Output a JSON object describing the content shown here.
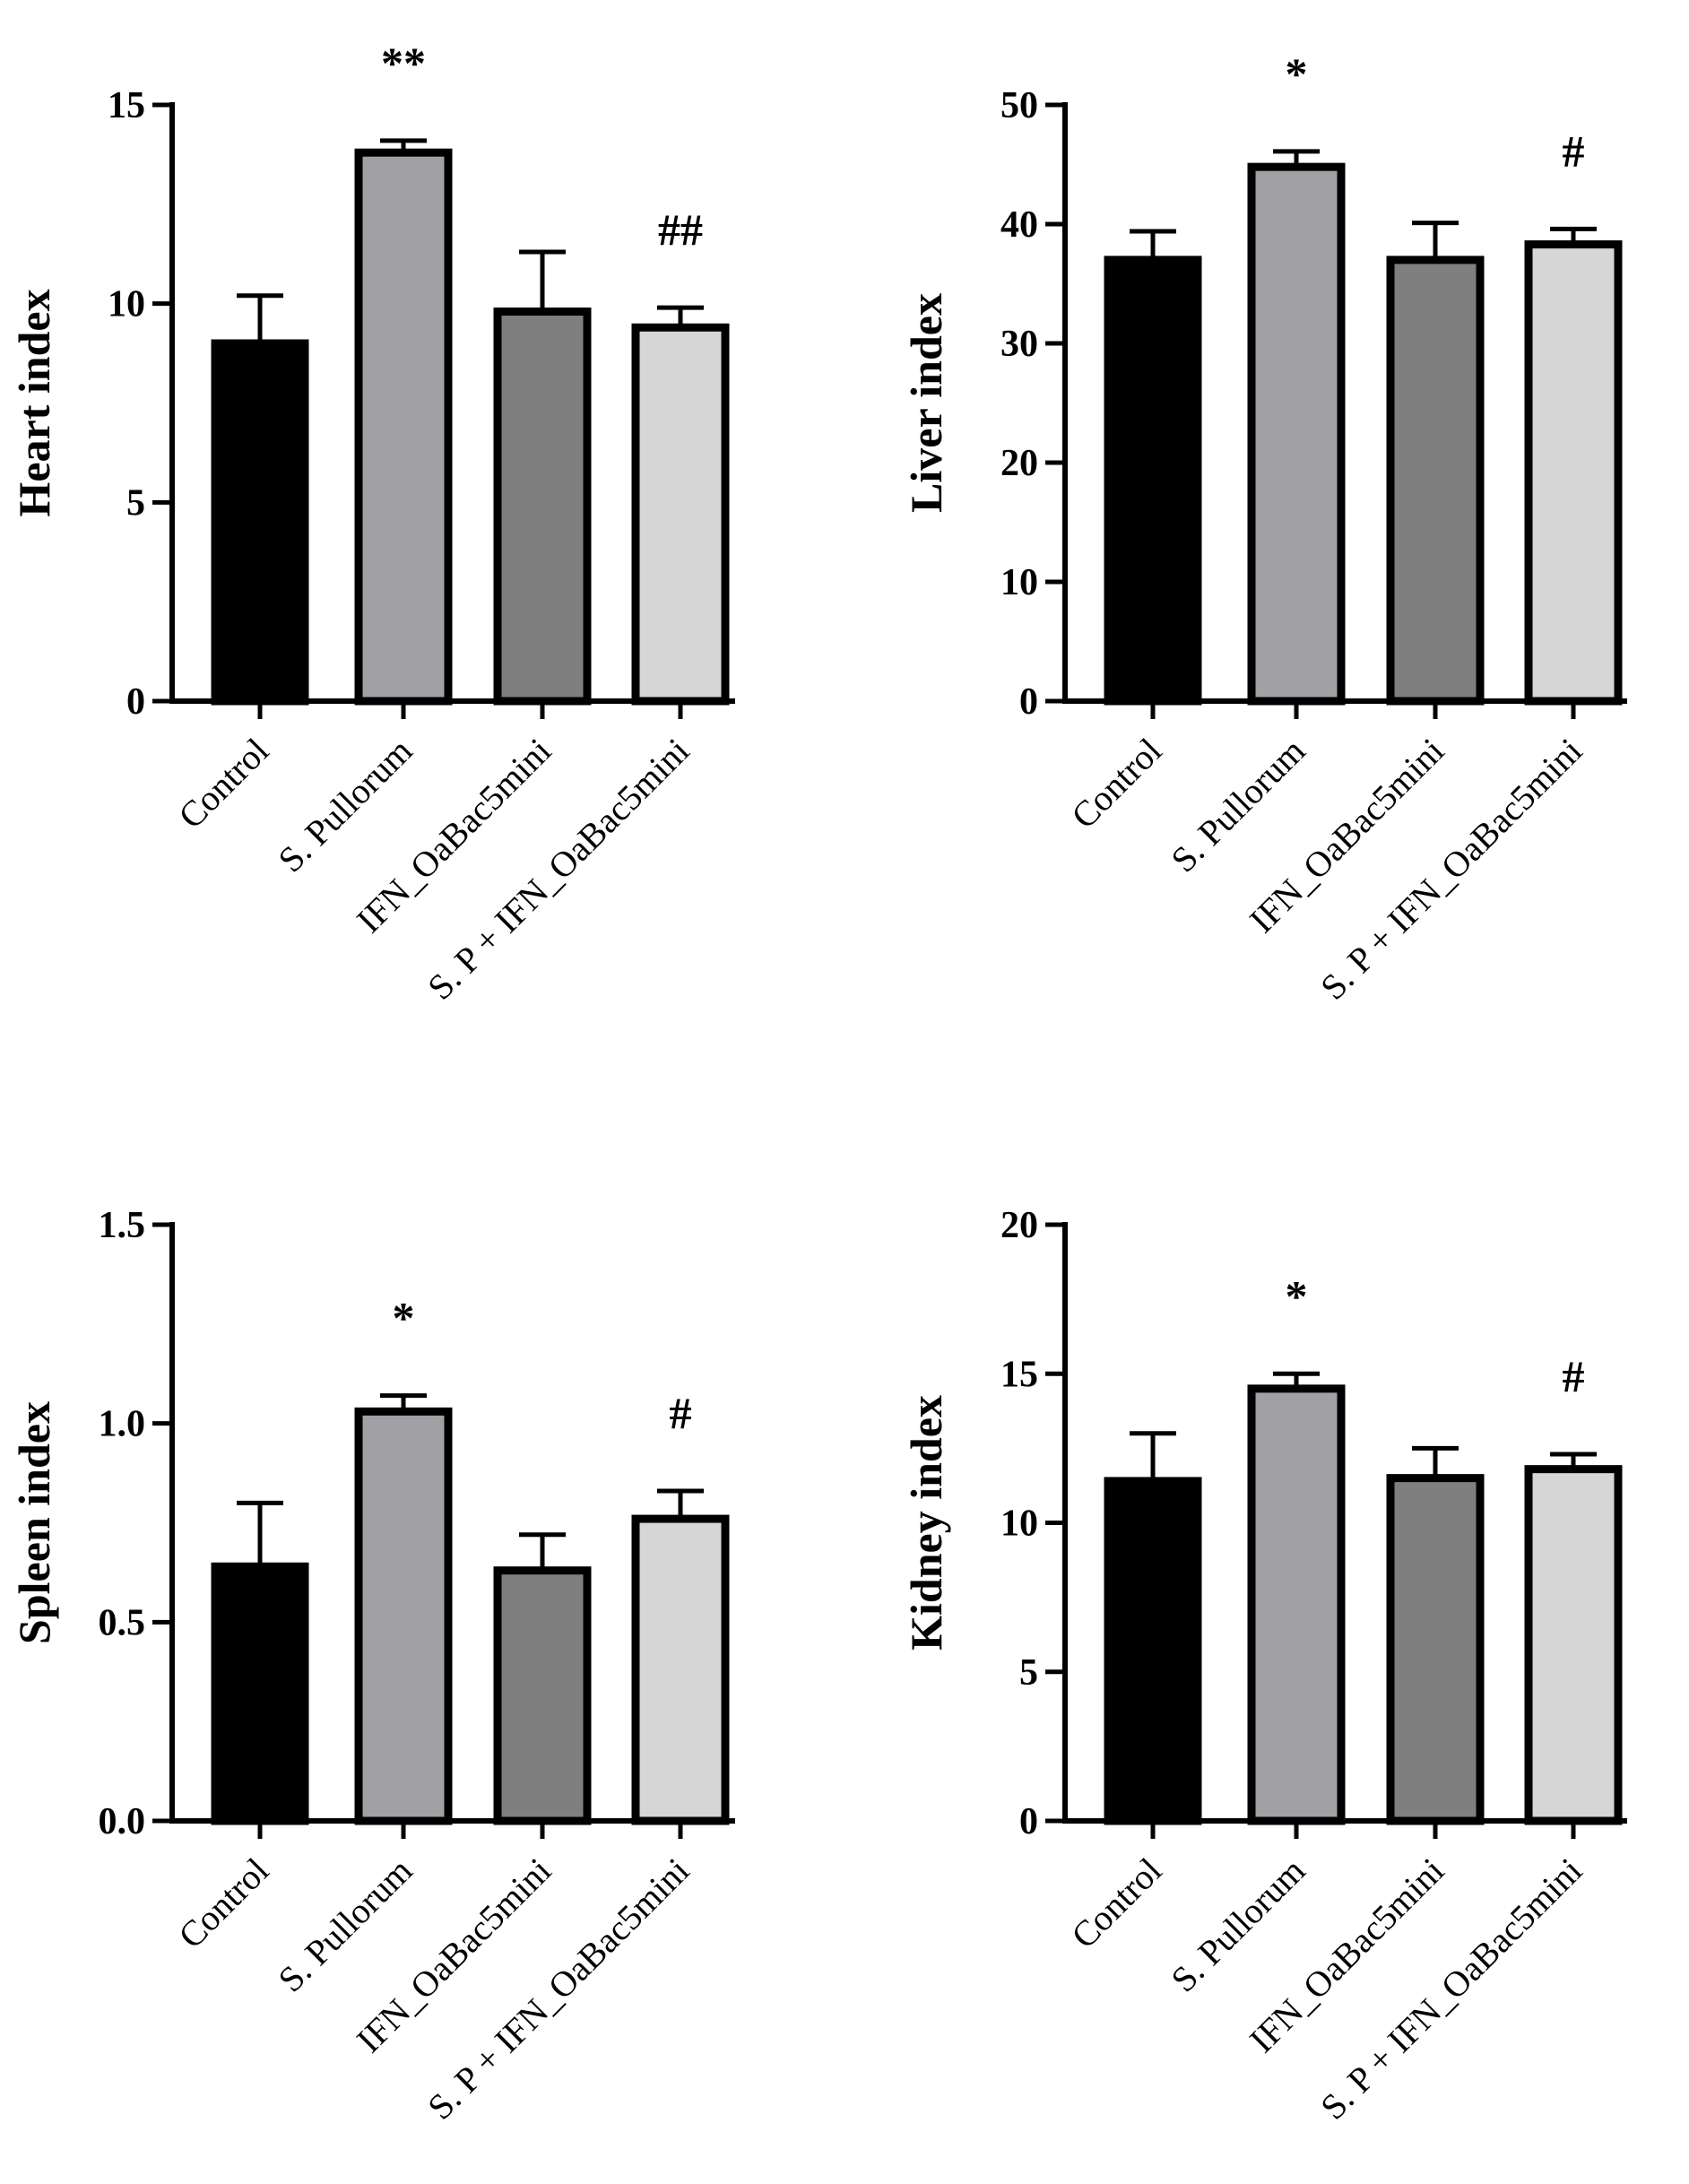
{
  "chart_data": [
    {
      "type": "bar",
      "title": "",
      "ylabel": "Heart index",
      "xlabel": "",
      "ylim": [
        0,
        15
      ],
      "yticks": [
        0,
        5,
        10,
        15
      ],
      "categories": [
        "Control",
        "S. Pullorum",
        "IFN_OaBac5mini",
        "S. P + IFN_OaBac5mini"
      ],
      "values": [
        9.0,
        13.8,
        9.8,
        9.4
      ],
      "errors": [
        1.2,
        0.3,
        1.5,
        0.5
      ],
      "annotations": [
        "",
        "**",
        "",
        "##"
      ],
      "colors": [
        "#000000",
        "#a0a0a5",
        "#7f7f7f",
        "#d6d6d6"
      ]
    },
    {
      "type": "bar",
      "title": "",
      "ylabel": "Liver index",
      "xlabel": "",
      "ylim": [
        0,
        50
      ],
      "yticks": [
        0,
        10,
        20,
        30,
        40,
        50
      ],
      "categories": [
        "Control",
        "S. Pullorum",
        "IFN_OaBac5mini",
        "S. P + IFN_OaBac5mini"
      ],
      "values": [
        37.0,
        44.8,
        37.0,
        38.3
      ],
      "errors": [
        2.4,
        1.3,
        3.1,
        1.3
      ],
      "annotations": [
        "",
        "*",
        "",
        "#"
      ],
      "colors": [
        "#000000",
        "#a0a0a5",
        "#7f7f7f",
        "#d6d6d6"
      ]
    },
    {
      "type": "bar",
      "title": "",
      "ylabel": "Spleen index",
      "xlabel": "",
      "ylim": [
        0,
        1.5
      ],
      "yticks": [
        "0.0",
        "0.5",
        "1.0",
        "1.5"
      ],
      "categories": [
        "Control",
        "S. Pullorum",
        "IFN_OaBac5mini",
        "S. P + IFN_OaBac5mini"
      ],
      "values": [
        0.64,
        1.03,
        0.63,
        0.76
      ],
      "errors": [
        0.16,
        0.04,
        0.09,
        0.07
      ],
      "annotations": [
        "",
        "*",
        "",
        "#"
      ],
      "colors": [
        "#000000",
        "#a0a0a5",
        "#7f7f7f",
        "#d6d6d6"
      ]
    },
    {
      "type": "bar",
      "title": "",
      "ylabel": "Kidney index",
      "xlabel": "",
      "ylim": [
        0,
        20
      ],
      "yticks": [
        0,
        5,
        10,
        15,
        20
      ],
      "categories": [
        "Control",
        "S. Pullorum",
        "IFN_OaBac5mini",
        "S. P + IFN_OaBac5mini"
      ],
      "values": [
        11.4,
        14.5,
        11.5,
        11.8
      ],
      "errors": [
        1.6,
        0.5,
        1.0,
        0.5
      ],
      "annotations": [
        "",
        "*",
        "",
        "#"
      ],
      "colors": [
        "#000000",
        "#a0a0a5",
        "#7f7f7f",
        "#d6d6d6"
      ]
    }
  ]
}
